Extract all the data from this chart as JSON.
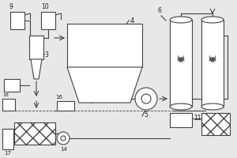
{
  "bg_color": "#e8e8e8",
  "line_color": "#444444",
  "fill_color": "#ffffff",
  "lw": 0.8,
  "fs": 5.5
}
